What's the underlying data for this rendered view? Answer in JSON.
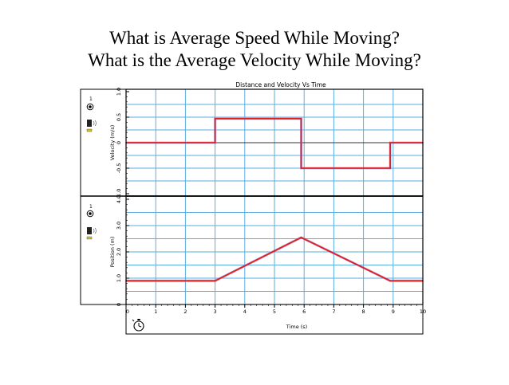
{
  "slide": {
    "title_line1": "What is Average Speed While Moving?",
    "title_line2": "What is the Average Velocity While Moving?"
  },
  "colors": {
    "grid": "#5aaee0",
    "data_line": "#e01f1f",
    "overlay_line": "#8a7ad8",
    "zero_line": "#333333",
    "frame": "#000000"
  },
  "sidebar": {
    "panel1_run_label": "1",
    "panel2_run_label": "1"
  },
  "chart_data": {
    "type": "line",
    "title": "Distance and Velocity Vs Time",
    "xlabel": "Time (s)",
    "xlim": [
      0,
      10
    ],
    "x_ticks": [
      "0",
      "1",
      "2",
      "3",
      "4",
      "5",
      "6",
      "7",
      "8",
      "9",
      "10"
    ],
    "grid": true,
    "panels": [
      {
        "ylabel": "Velocity (m/s)",
        "ylim": [
          -1.0,
          1.0
        ],
        "y_ticks": [
          "-1.0",
          "-0.5",
          "0",
          "0.5",
          "1.0"
        ],
        "series": [
          {
            "x": [
              0,
              3,
              3,
              5.9,
              5.9,
              8.9,
              8.9,
              10
            ],
            "y": [
              0,
              0,
              0.47,
              0.47,
              -0.5,
              -0.5,
              0,
              0
            ]
          }
        ]
      },
      {
        "ylabel": "Position (m)",
        "ylim": [
          0,
          4.0
        ],
        "y_ticks": [
          "0",
          "1.0",
          "2.0",
          "3.0",
          "4.0"
        ],
        "series": [
          {
            "x": [
              0,
              3,
              5.9,
              8.9,
              10
            ],
            "y": [
              0.9,
              0.9,
              2.55,
              0.9,
              0.9
            ]
          }
        ]
      }
    ]
  }
}
